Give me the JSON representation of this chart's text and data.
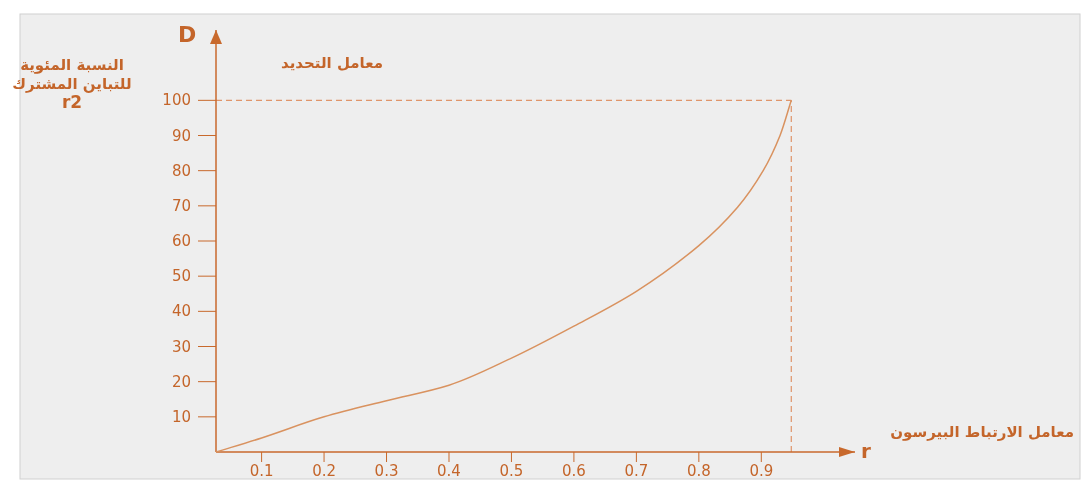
{
  "chart_data": {
    "type": "line",
    "title": "معامل التحديد",
    "xlabel": "معامل الارتباط البيرسون",
    "ylabel": "النسبة المئوية\nللتباين المشترك\nr2",
    "annotations": [
      "D",
      "r"
    ],
    "x": [
      0.027,
      0.1,
      0.2,
      0.3,
      0.4,
      0.5,
      0.6,
      0.7,
      0.8,
      0.862,
      0.903,
      0.93,
      0.948
    ],
    "series": [
      {
        "color": "#d9925f",
        "values": [
          0,
          4,
          10,
          14.6,
          19,
          26.7,
          35.8,
          45.7,
          58.7,
          69.6,
          80,
          90,
          100
        ]
      }
    ],
    "xlim": [
      0.027,
      1.05
    ],
    "ylim": [
      0,
      120
    ],
    "xticks": [
      0.1,
      0.2,
      0.3,
      0.4,
      0.5,
      0.6,
      0.7,
      0.8,
      0.9
    ],
    "yticks": [
      10,
      20,
      30,
      40,
      50,
      60,
      70,
      80,
      90,
      100
    ],
    "ref_lines": [
      {
        "axis": "y",
        "value": 100,
        "color": "#e0956a",
        "line_style": "dashed"
      },
      {
        "axis": "x",
        "value": 0.948,
        "color": "#e0956a",
        "line_style": "dashed"
      }
    ],
    "grid": false,
    "marker": "none",
    "line_style": "solid"
  }
}
